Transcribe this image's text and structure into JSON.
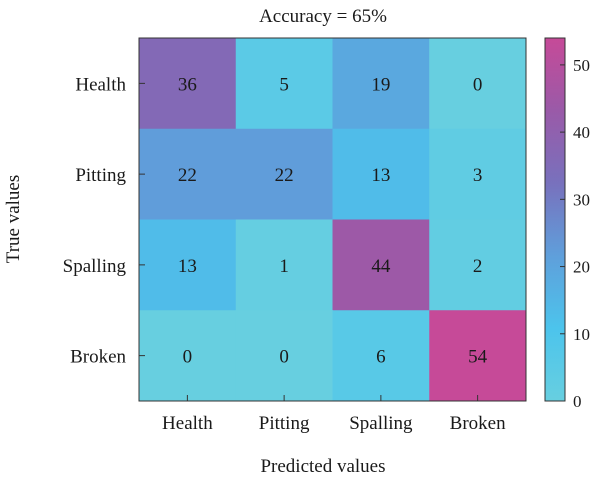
{
  "chart_data": {
    "type": "heatmap",
    "title": "Accuracy = 65%",
    "xlabel": "Predicted values",
    "ylabel": "True values",
    "x_categories": [
      "Health",
      "Pitting",
      "Spalling",
      "Broken"
    ],
    "y_categories": [
      "Health",
      "Pitting",
      "Spalling",
      "Broken"
    ],
    "values": [
      [
        36,
        5,
        19,
        0
      ],
      [
        22,
        22,
        13,
        3
      ],
      [
        13,
        1,
        44,
        2
      ],
      [
        0,
        0,
        6,
        54
      ]
    ],
    "colorbar": {
      "range": [
        0,
        54
      ],
      "ticks": [
        0,
        10,
        20,
        30,
        40,
        50
      ]
    },
    "colormap": [
      "#67cfe0",
      "#4cc4ec",
      "#5f9fdb",
      "#7871bd",
      "#9a5aa8",
      "#c64a98"
    ]
  }
}
